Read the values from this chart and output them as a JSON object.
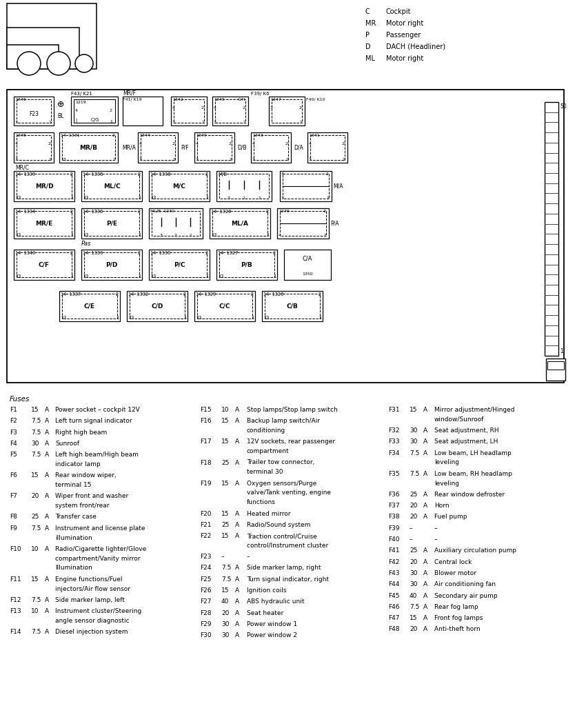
{
  "bg_color": "#ffffff",
  "tc": "#000000",
  "fig_w": 8.5,
  "fig_h": 10.24,
  "legend": [
    [
      "C",
      "Cockpit"
    ],
    [
      "MR",
      "Motor right"
    ],
    [
      "P",
      "Passenger"
    ],
    [
      "D",
      "DACH (Headliner)"
    ],
    [
      "ML",
      "Motor right"
    ]
  ],
  "fuses_col1": [
    [
      "F1",
      "15",
      "A",
      "Power socket – cockpit 12V"
    ],
    [
      "F2",
      "7.5",
      "A",
      "Left turn signal indicator"
    ],
    [
      "F3",
      "7.5",
      "A",
      "Right high beam"
    ],
    [
      "F4",
      "30",
      "A",
      "Sunroof"
    ],
    [
      "F5",
      "7.5",
      "A",
      "Left high beam/High beam\nindicator lamp"
    ],
    [
      "F6",
      "15",
      "A",
      "Rear window wiper,\nterminal 15"
    ],
    [
      "F7",
      "20",
      "A",
      "Wiper front and washer\nsystem front/rear"
    ],
    [
      "F8",
      "25",
      "A",
      "Transfer case"
    ],
    [
      "F9",
      "7.5",
      "A",
      "Instrument and license plate\nillumination"
    ],
    [
      "F10",
      "10",
      "A",
      "Radio/Cigarette lighter/Glove\ncompartment/Vanity mirror\nIllumination"
    ],
    [
      "F11",
      "15",
      "A",
      "Engine functions/Fuel\ninjectors/Air flow sensor"
    ],
    [
      "F12",
      "7.5",
      "A",
      "Side marker lamp, left"
    ],
    [
      "F13",
      "10",
      "A",
      "Instrument cluster/Steering\nangle sensor diagnostic"
    ],
    [
      "F14",
      "7.5",
      "A",
      "Diesel injection system"
    ]
  ],
  "fuses_col2": [
    [
      "F15",
      "10",
      "A",
      "Stop lamps/Stop lamp switch"
    ],
    [
      "F16",
      "15",
      "A",
      "Backup lamp switch/Air\nconditioning"
    ],
    [
      "F17",
      "15",
      "A",
      "12V sockets, rear passenger\ncompartment"
    ],
    [
      "F18",
      "25",
      "A",
      "Trailer tow connector,\nterminal 30"
    ],
    [
      "F19",
      "15",
      "A",
      "Oxygen sensors/Purge\nvalve/Tank venting, engine\nfunctions"
    ],
    [
      "F20",
      "15",
      "A",
      "Heated mirror"
    ],
    [
      "F21",
      "25",
      "A",
      "Radio/Sound system"
    ],
    [
      "F22",
      "15",
      "A",
      "Traction control/Cruise\ncontrol/Instrument cluster"
    ],
    [
      "F23",
      "–",
      "",
      "–"
    ],
    [
      "F24",
      "7.5",
      "A",
      "Side marker lamp, right"
    ],
    [
      "F25",
      "7.5",
      "A",
      "Turn signal indicator, right"
    ],
    [
      "F26",
      "15",
      "A",
      "Ignition coils"
    ],
    [
      "F27",
      "40",
      "A",
      "ABS hydraulic unit"
    ],
    [
      "F28",
      "20",
      "A",
      "Seat heater"
    ],
    [
      "F29",
      "30",
      "A",
      "Power window 1"
    ],
    [
      "F30",
      "30",
      "A",
      "Power window 2"
    ]
  ],
  "fuses_col3": [
    [
      "F31",
      "15",
      "A",
      "Mirror adjustment/Hinged\nwindow/Sunroof"
    ],
    [
      "F32",
      "30",
      "A",
      "Seat adjustment, RH"
    ],
    [
      "F33",
      "30",
      "A",
      "Seat adjustment, LH"
    ],
    [
      "F34",
      "7.5",
      "A",
      "Low beam, LH headlamp\nleveling"
    ],
    [
      "F35",
      "7.5",
      "A",
      "Low beam, RH headlamp\nleveling"
    ],
    [
      "F36",
      "25",
      "A",
      "Rear window defroster"
    ],
    [
      "F37",
      "20",
      "A",
      "Horn"
    ],
    [
      "F38",
      "20",
      "A",
      "Fuel pump"
    ],
    [
      "F39",
      "–",
      "",
      "–"
    ],
    [
      "F40",
      "–",
      "",
      "–"
    ],
    [
      "F41",
      "25",
      "A",
      "Auxiliary circulation pump"
    ],
    [
      "F42",
      "20",
      "A",
      "Central lock"
    ],
    [
      "F43",
      "30",
      "A",
      "Blower motor"
    ],
    [
      "F44",
      "30",
      "A",
      "Air conditioning fan"
    ],
    [
      "F45",
      "40",
      "A",
      "Secondary air pump"
    ],
    [
      "F46",
      "7.5",
      "A",
      "Rear fog lamp"
    ],
    [
      "F47",
      "15",
      "A",
      "Front fog lamps"
    ],
    [
      "F48",
      "20",
      "A",
      "Anti-theft horn"
    ]
  ]
}
